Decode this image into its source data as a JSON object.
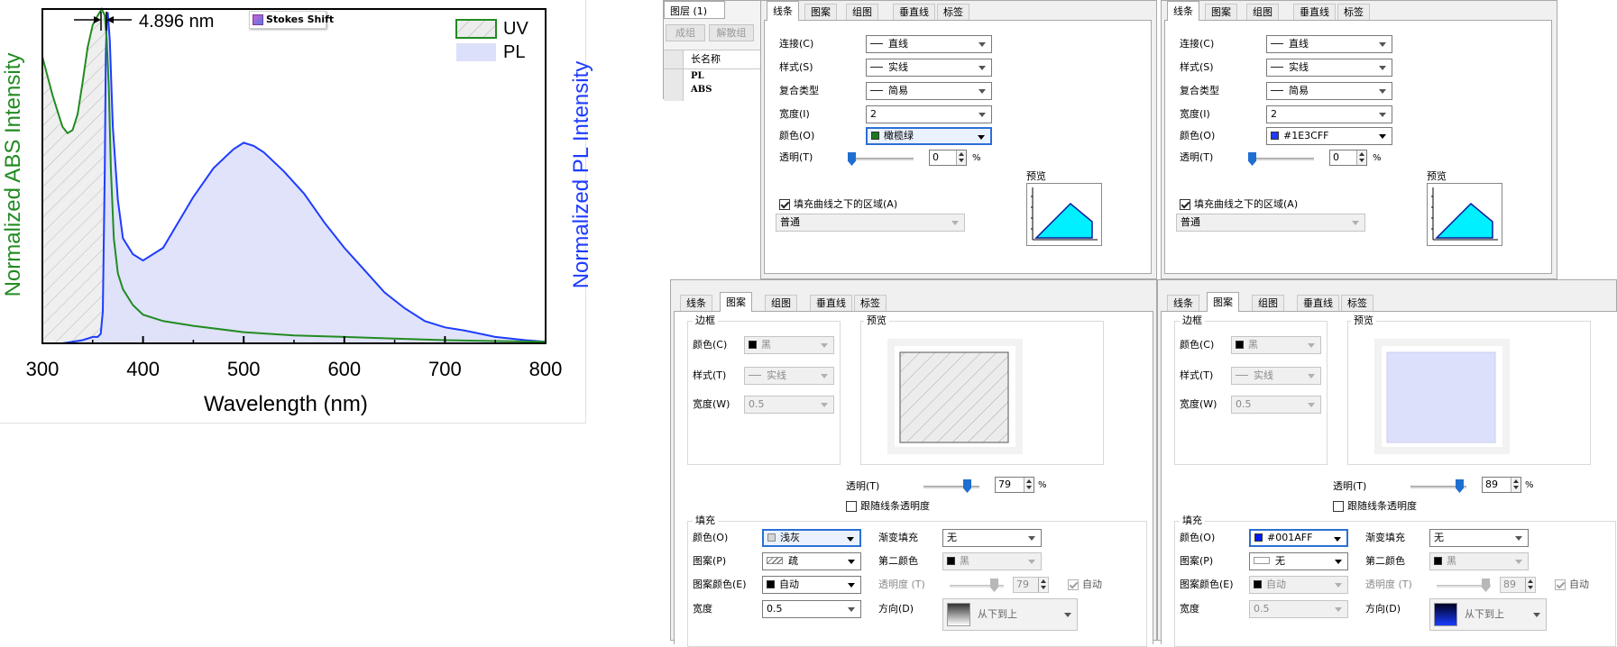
{
  "chart": {
    "stokes_annotation": "4.896 nm",
    "toolbar_chip_label": "Stokes Shift",
    "left_axis_label": "Normalized ABS Intensity",
    "right_axis_label": "Normalized PL Intensity",
    "x_axis_label": "Wavelength (nm)",
    "uv_color": "#228B22",
    "pl_color": "#1E3CFF"
  },
  "chart_data": {
    "type": "area",
    "xlabel": "Wavelength (nm)",
    "ylabel": "Normalized ABS Intensity",
    "y2label": "Normalized PL Intensity",
    "xlim": [
      300,
      800
    ],
    "ylim": [
      0,
      1.05
    ],
    "xticks": [
      "300",
      "400",
      "500",
      "600",
      "700",
      "800"
    ],
    "legend": {
      "position": "top-right",
      "entries": [
        "UV",
        "PL"
      ]
    },
    "annotation": {
      "text": "4.896 nm",
      "from_x": 359,
      "to_x": 364
    },
    "series": [
      {
        "name": "UV",
        "color": "#228B22",
        "fill": "hatch-gray",
        "x": [
          300,
          305,
          310,
          315,
          320,
          325,
          330,
          335,
          340,
          345,
          350,
          355,
          359,
          362,
          364,
          366,
          368,
          371,
          375,
          380,
          390,
          400,
          420,
          450,
          500,
          550,
          600,
          650,
          700,
          750,
          800
        ],
        "y": [
          0.9,
          0.84,
          0.78,
          0.73,
          0.68,
          0.66,
          0.67,
          0.72,
          0.82,
          0.93,
          1.0,
          1.03,
          1.05,
          1.03,
          0.95,
          0.8,
          0.55,
          0.33,
          0.22,
          0.17,
          0.12,
          0.09,
          0.07,
          0.055,
          0.035,
          0.025,
          0.02,
          0.015,
          0.01,
          0.007,
          0.005
        ]
      },
      {
        "name": "PL",
        "color": "#1E3CFF",
        "fill": "lavender",
        "x": [
          300,
          320,
          340,
          350,
          355,
          358,
          360,
          362,
          363,
          364,
          365,
          367,
          370,
          375,
          380,
          390,
          400,
          420,
          450,
          470,
          490,
          500,
          510,
          520,
          540,
          560,
          580,
          600,
          620,
          640,
          660,
          680,
          700,
          720,
          750,
          780,
          800
        ],
        "y": [
          0.0,
          0.0,
          0.01,
          0.02,
          0.02,
          0.03,
          0.1,
          0.55,
          0.9,
          1.02,
          1.04,
          0.95,
          0.68,
          0.45,
          0.33,
          0.28,
          0.26,
          0.3,
          0.46,
          0.55,
          0.61,
          0.63,
          0.62,
          0.6,
          0.54,
          0.47,
          0.38,
          0.3,
          0.23,
          0.16,
          0.11,
          0.07,
          0.05,
          0.04,
          0.02,
          0.01,
          0.005
        ]
      }
    ]
  },
  "layers_panel": {
    "title": "图层 (1)",
    "group_button": "成组",
    "ungroup_button": "解散组",
    "column_header": "长名称",
    "rows": [
      "PL",
      "ABS"
    ]
  },
  "line_dialogs": [
    {
      "tabs": [
        "线条",
        "图案",
        "组图",
        "垂直线",
        "标签"
      ],
      "connect_label": "连接(C)",
      "connect_value": "直线",
      "style_label": "样式(S)",
      "style_value": "实线",
      "composite_label": "复合类型",
      "composite_value": "简易",
      "width_label": "宽度(I)",
      "width_value": "2",
      "color_label": "颜色(O)",
      "color_value": "橄榄绿",
      "color_swatch": "#1a7a1a",
      "opacity_label": "透明(T)",
      "opacity_value": "0",
      "percent": "%",
      "fill_under_label": "填充曲线之下的区域(A)",
      "fill_mode": "普通",
      "preview_label": "预览"
    },
    {
      "tabs": [
        "线条",
        "图案",
        "组图",
        "垂直线",
        "标签"
      ],
      "connect_label": "连接(C)",
      "connect_value": "直线",
      "style_label": "样式(S)",
      "style_value": "实线",
      "composite_label": "复合类型",
      "composite_value": "简易",
      "width_label": "宽度(I)",
      "width_value": "2",
      "color_label": "颜色(O)",
      "color_value": "#1E3CFF",
      "color_swatch": "#1E3CFF",
      "opacity_label": "透明(T)",
      "opacity_value": "0",
      "percent": "%",
      "fill_under_label": "填充曲线之下的区域(A)",
      "fill_mode": "普通",
      "preview_label": "预览"
    }
  ],
  "pattern_dialogs": [
    {
      "tabs": [
        "线条",
        "图案",
        "组图",
        "垂直线",
        "标签"
      ],
      "border_group": "边框",
      "border_color_label": "颜色(C)",
      "border_color_value": "黑",
      "border_style_label": "样式(T)",
      "border_style_value": "实线",
      "border_width_label": "宽度(W)",
      "border_width_value": "0.5",
      "preview_label": "预览",
      "transparency_label": "透明(T)",
      "transparency_value": "79",
      "transparency_fraction": 0.79,
      "percent": "%",
      "follow_line_label": "跟随线条透明度",
      "fill_group": "填充",
      "fill_color_label": "颜色(O)",
      "fill_color_value": "浅灰",
      "fill_color_swatch": "#d4d4d4",
      "gradient_label": "渐变填充",
      "gradient_value": "无",
      "pattern_label": "图案(P)",
      "pattern_value": "疏",
      "second_color_label": "第二颜色",
      "second_color_value": "黑",
      "pattern_color_label": "图案颜色(E)",
      "pattern_color_value": "自动",
      "opacity2_label": "透明度 (T)",
      "opacity2_value": "79",
      "auto_label": "自动",
      "width_label": "宽度",
      "width_value": "0.5",
      "direction_label": "方向(D)",
      "direction_value": "从下到上"
    },
    {
      "tabs": [
        "线条",
        "图案",
        "组图",
        "垂直线",
        "标签"
      ],
      "border_group": "边框",
      "border_color_label": "颜色(C)",
      "border_color_value": "黑",
      "border_style_label": "样式(T)",
      "border_style_value": "实线",
      "border_width_label": "宽度(W)",
      "border_width_value": "0.5",
      "preview_label": "预览",
      "transparency_label": "透明(T)",
      "transparency_value": "89",
      "transparency_fraction": 0.89,
      "percent": "%",
      "follow_line_label": "跟随线条透明度",
      "fill_group": "填充",
      "fill_color_label": "颜色(O)",
      "fill_color_value": "#001AFF",
      "fill_color_swatch": "#001AFF",
      "gradient_label": "渐变填充",
      "gradient_value": "无",
      "pattern_label": "图案(P)",
      "pattern_value": "无",
      "second_color_label": "第二颜色",
      "second_color_value": "黑",
      "pattern_color_label": "图案颜色(E)",
      "pattern_color_value": "自动",
      "opacity2_label": "透明度 (T)",
      "opacity2_value": "89",
      "auto_label": "自动",
      "width_label": "宽度",
      "width_value": "0.5",
      "direction_label": "方向(D)",
      "direction_value": "从下到上"
    }
  ]
}
